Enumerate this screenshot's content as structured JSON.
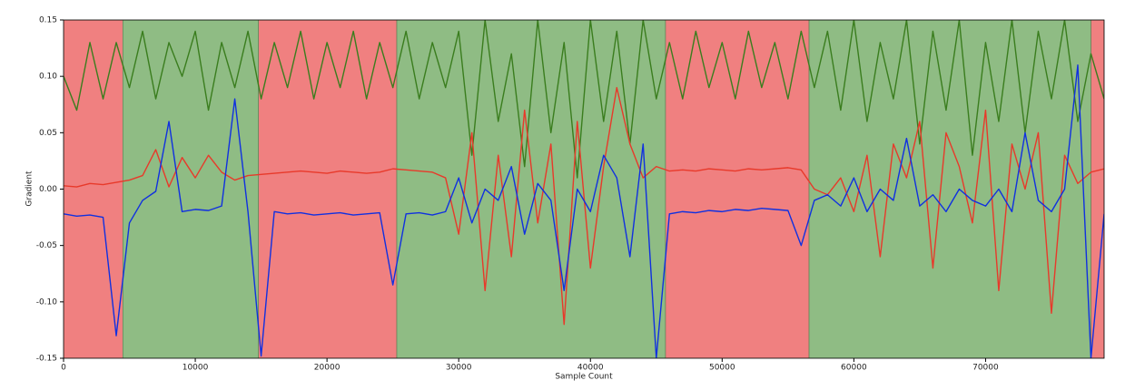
{
  "chart_data": {
    "type": "line",
    "xlabel": "Sample Count",
    "ylabel": "Gradient",
    "xlim": [
      0,
      79000
    ],
    "ylim": [
      -0.15,
      0.15
    ],
    "xticks": [
      0,
      10000,
      20000,
      30000,
      40000,
      50000,
      60000,
      70000
    ],
    "yticks": [
      -0.15,
      {
        "value": -0.1,
        "label": "-0.10"
      },
      -0.05,
      {
        "value": 0,
        "label": "0.00"
      },
      0.05,
      {
        "value": 0.1,
        "label": "0.10"
      },
      0.15
    ],
    "spans": [
      {
        "start": 0,
        "end": 4500,
        "color": "#f08080"
      },
      {
        "start": 4500,
        "end": 14800,
        "color": "#8fbc84"
      },
      {
        "start": 14800,
        "end": 25300,
        "color": "#f08080"
      },
      {
        "start": 25300,
        "end": 45700,
        "color": "#8fbc84"
      },
      {
        "start": 45700,
        "end": 56600,
        "color": "#f08080"
      },
      {
        "start": 56600,
        "end": 78000,
        "color": "#8fbc84"
      },
      {
        "start": 78000,
        "end": 79000,
        "color": "#f08080"
      }
    ],
    "x": [
      0,
      1000,
      2000,
      3000,
      4000,
      5000,
      6000,
      7000,
      8000,
      9000,
      10000,
      11000,
      12000,
      13000,
      14000,
      15000,
      16000,
      17000,
      18000,
      19000,
      20000,
      21000,
      22000,
      23000,
      24000,
      25000,
      26000,
      27000,
      28000,
      29000,
      30000,
      31000,
      32000,
      33000,
      34000,
      35000,
      36000,
      37000,
      38000,
      39000,
      40000,
      41000,
      42000,
      43000,
      44000,
      45000,
      46000,
      47000,
      48000,
      49000,
      50000,
      51000,
      52000,
      53000,
      54000,
      55000,
      56000,
      57000,
      58000,
      59000,
      60000,
      61000,
      62000,
      63000,
      64000,
      65000,
      66000,
      67000,
      68000,
      69000,
      70000,
      71000,
      72000,
      73000,
      74000,
      75000,
      76000,
      77000,
      78000,
      79000
    ],
    "series": [
      {
        "color": "#3a7d1e",
        "values": [
          0.1,
          0.07,
          0.13,
          0.08,
          0.13,
          0.09,
          0.14,
          0.08,
          0.13,
          0.1,
          0.14,
          0.07,
          0.13,
          0.09,
          0.14,
          0.08,
          0.13,
          0.09,
          0.14,
          0.08,
          0.13,
          0.09,
          0.14,
          0.08,
          0.13,
          0.09,
          0.14,
          0.08,
          0.13,
          0.09,
          0.14,
          0.03,
          0.15,
          0.06,
          0.12,
          0.02,
          0.15,
          0.05,
          0.13,
          0.01,
          0.15,
          0.06,
          0.14,
          0.04,
          0.15,
          0.08,
          0.13,
          0.08,
          0.14,
          0.09,
          0.13,
          0.08,
          0.14,
          0.09,
          0.13,
          0.08,
          0.14,
          0.09,
          0.14,
          0.07,
          0.15,
          0.06,
          0.13,
          0.08,
          0.15,
          0.04,
          0.14,
          0.07,
          0.15,
          0.03,
          0.13,
          0.06,
          0.15,
          0.05,
          0.14,
          0.08,
          0.15,
          0.06,
          0.12,
          0.08
        ]
      },
      {
        "color": "#e8392a",
        "values": [
          0.003,
          0.002,
          0.005,
          0.004,
          0.006,
          0.008,
          0.012,
          0.035,
          0.002,
          0.028,
          0.01,
          0.03,
          0.015,
          0.008,
          0.012,
          0.013,
          0.014,
          0.015,
          0.016,
          0.015,
          0.014,
          0.016,
          0.015,
          0.014,
          0.015,
          0.018,
          0.017,
          0.016,
          0.015,
          0.01,
          -0.04,
          0.05,
          -0.09,
          0.03,
          -0.06,
          0.07,
          -0.03,
          0.04,
          -0.12,
          0.06,
          -0.07,
          0.02,
          0.09,
          0.04,
          0.01,
          0.02,
          0.016,
          0.017,
          0.016,
          0.018,
          0.017,
          0.016,
          0.018,
          0.017,
          0.018,
          0.019,
          0.017,
          0.0,
          -0.005,
          0.01,
          -0.02,
          0.03,
          -0.06,
          0.04,
          0.01,
          0.06,
          -0.07,
          0.05,
          0.02,
          -0.03,
          0.07,
          -0.09,
          0.04,
          0.0,
          0.05,
          -0.11,
          0.03,
          0.005,
          0.015,
          0.018
        ]
      },
      {
        "color": "#1030e0",
        "values": [
          -0.022,
          -0.024,
          -0.023,
          -0.025,
          -0.13,
          -0.03,
          -0.01,
          -0.002,
          0.06,
          -0.02,
          -0.018,
          -0.019,
          -0.015,
          0.08,
          -0.02,
          -0.148,
          -0.02,
          -0.022,
          -0.021,
          -0.023,
          -0.022,
          -0.021,
          -0.023,
          -0.022,
          -0.021,
          -0.085,
          -0.022,
          -0.021,
          -0.023,
          -0.02,
          0.01,
          -0.03,
          0.0,
          -0.01,
          0.02,
          -0.04,
          0.005,
          -0.01,
          -0.09,
          0.0,
          -0.02,
          0.03,
          0.01,
          -0.06,
          0.04,
          -0.15,
          -0.022,
          -0.02,
          -0.021,
          -0.019,
          -0.02,
          -0.018,
          -0.019,
          -0.017,
          -0.018,
          -0.019,
          -0.05,
          -0.01,
          -0.005,
          -0.015,
          0.01,
          -0.02,
          0.0,
          -0.01,
          0.045,
          -0.015,
          -0.005,
          -0.02,
          0.0,
          -0.01,
          -0.015,
          0.0,
          -0.02,
          0.05,
          -0.01,
          -0.02,
          0.0,
          0.11,
          -0.15,
          -0.022
        ]
      }
    ]
  }
}
